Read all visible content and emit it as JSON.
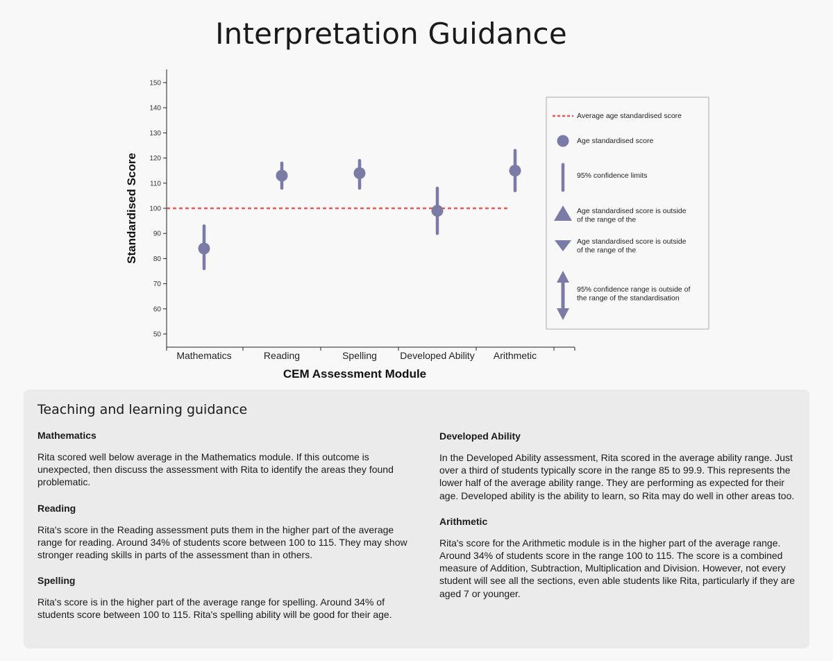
{
  "title": "Interpretation Guidance",
  "chart_data": {
    "type": "scatter",
    "ylabel": "Standardised Score",
    "xlabel": "CEM Assessment Module",
    "ylim": [
      45,
      155
    ],
    "yticks": [
      50,
      60,
      70,
      80,
      90,
      100,
      110,
      120,
      130,
      140,
      150
    ],
    "categories": [
      "Mathematics",
      "Reading",
      "Spelling",
      "Developed Ability",
      "Arithmetic"
    ],
    "scores": [
      84,
      113,
      114,
      99,
      115
    ],
    "lower": [
      76,
      108,
      108,
      90,
      107
    ],
    "upper": [
      93,
      118,
      119,
      108,
      123
    ],
    "average": 100,
    "colors": {
      "marker": "#7a7ba6",
      "average_line": "#e35b5b"
    },
    "legend": [
      {
        "symbol": "dashed-line",
        "text": "Average age standardised score"
      },
      {
        "symbol": "circle",
        "text": "Age standardised score"
      },
      {
        "symbol": "vertical-bar",
        "text": "95% confidence limits"
      },
      {
        "symbol": "triangle-up",
        "text": "Age standardised score is outside of the range of the standardisation"
      },
      {
        "symbol": "triangle-down",
        "text": "Age standardised score is outside of the range of the standardisation"
      },
      {
        "symbol": "double-arrow",
        "text": "95% confidence range is outside of the range of the standardisation"
      }
    ]
  },
  "guidance": {
    "heading": "Teaching and learning guidance",
    "sections": [
      {
        "title": "Mathematics",
        "text": "Rita scored well below average in the Mathematics module. If this outcome is unexpected, then discuss the assessment with Rita to identify the areas they found problematic."
      },
      {
        "title": "Reading",
        "text": "Rita's score in the Reading assessment puts them in the higher part of the average range for reading. Around 34% of students score between 100 to 115. They may show stronger reading skills in parts of the assessment than in others."
      },
      {
        "title": "Spelling",
        "text": "Rita's score is in the higher part of the average range for spelling. Around 34% of students score between 100 to 115. Rita's spelling ability will be good for their age."
      },
      {
        "title": "Developed Ability",
        "text": "In the Developed Ability assessment, Rita scored in the average ability range. Just over a third of students typically score in the range 85 to 99.9. This represents the lower half of the average ability range. They are performing as expected for their age. Developed ability is the ability to learn, so Rita may do well in other areas too."
      },
      {
        "title": "Arithmetic",
        "text": "Rita's score for the Arithmetic module is in the higher part of the average range. Around 34% of students score in the range 100 to 115. The score is a combined measure of Addition, Subtraction, Multiplication and Division. However, not every student will see all the sections, even able students like Rita, particularly if they are aged 7 or younger."
      }
    ]
  }
}
